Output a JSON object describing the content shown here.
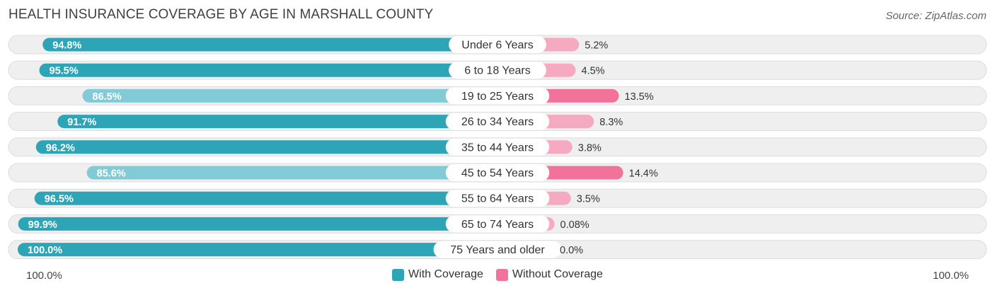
{
  "header": {
    "title": "HEALTH INSURANCE COVERAGE BY AGE IN MARSHALL COUNTY",
    "source": "Source: ZipAtlas.com"
  },
  "colors": {
    "with_dark": "#2ea5b6",
    "with_light": "#82cbd6",
    "without_dark": "#f2739a",
    "without_light": "#f6aac2",
    "track": "#efefef",
    "track_border": "#dddddd"
  },
  "chart_data": {
    "type": "bar",
    "title": "HEALTH INSURANCE COVERAGE BY AGE IN MARSHALL COUNTY",
    "orientation": "diverging-horizontal",
    "categories": [
      "Under 6 Years",
      "6 to 18 Years",
      "19 to 25 Years",
      "26 to 34 Years",
      "35 to 44 Years",
      "45 to 54 Years",
      "55 to 64 Years",
      "65 to 74 Years",
      "75 Years and older"
    ],
    "series": [
      {
        "name": "With Coverage",
        "values": [
          94.8,
          95.5,
          86.5,
          91.7,
          96.2,
          85.6,
          96.5,
          99.9,
          100.0
        ],
        "labels": [
          "94.8%",
          "95.5%",
          "86.5%",
          "91.7%",
          "96.2%",
          "85.6%",
          "96.5%",
          "99.9%",
          "100.0%"
        ]
      },
      {
        "name": "Without Coverage",
        "values": [
          5.2,
          4.5,
          13.5,
          8.3,
          3.8,
          14.4,
          3.5,
          0.08,
          0.0
        ],
        "labels": [
          "5.2%",
          "4.5%",
          "13.5%",
          "8.3%",
          "3.8%",
          "14.4%",
          "3.5%",
          "0.08%",
          "0.0%"
        ]
      }
    ],
    "axis": {
      "left_label": "100.0%",
      "right_label": "100.0%",
      "range": [
        0,
        100
      ]
    },
    "legend": {
      "position": "bottom-center",
      "entries": [
        "With Coverage",
        "Without Coverage"
      ]
    }
  }
}
